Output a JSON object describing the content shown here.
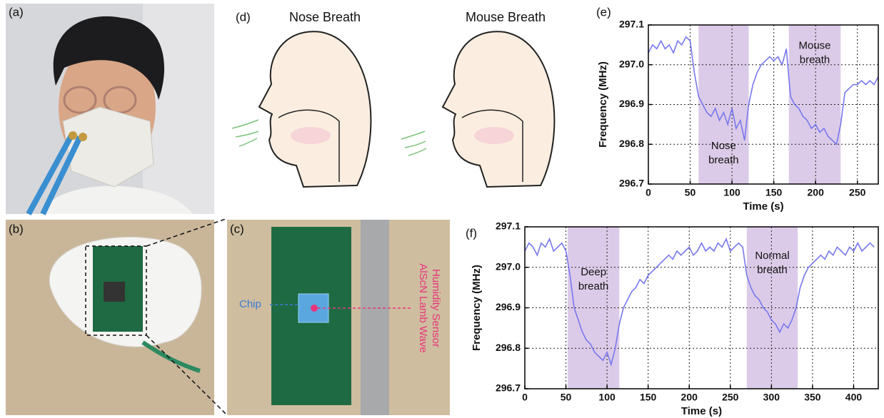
{
  "panels": {
    "a": "(a)",
    "b": "(b)",
    "c": "(c)",
    "d": "(d)",
    "e": "(e)",
    "f": "(f)"
  },
  "illustration": {
    "left_title": "Nose Breath",
    "right_title": "Mouse Breath"
  },
  "photo_c": {
    "chip_label": "Chip",
    "sensor_label": [
      "AlScN Lamb Wave",
      "Humidity Sensor"
    ]
  },
  "chart_data": [
    {
      "type": "line",
      "x_label": "Time (s)",
      "y_label": "Frequency (MHz)",
      "color": "#7777ee",
      "grid": true,
      "xlim": [
        0,
        275
      ],
      "xticks": [
        0,
        50,
        100,
        150,
        200,
        250
      ],
      "ylim": [
        296.7,
        297.1
      ],
      "yticks": [
        296.7,
        296.8,
        296.9,
        {
          "value": 297,
          "label": "297.0"
        },
        297.1
      ],
      "shaded": [
        {
          "x": [
            60,
            120
          ],
          "label": [
            "Nose",
            "breath"
          ]
        },
        {
          "x": [
            168,
            230
          ],
          "label": [
            "Mouse",
            "breath"
          ]
        }
      ],
      "shade_color": "#dccbe8",
      "x": [
        0,
        5,
        10,
        15,
        20,
        25,
        30,
        35,
        40,
        45,
        50,
        55,
        60,
        65,
        70,
        75,
        80,
        85,
        90,
        95,
        100,
        105,
        110,
        115,
        120,
        125,
        130,
        135,
        140,
        145,
        150,
        155,
        160,
        165,
        170,
        175,
        180,
        185,
        190,
        195,
        200,
        205,
        210,
        215,
        220,
        225,
        230,
        235,
        240,
        245,
        250,
        255,
        260,
        265,
        270,
        275
      ],
      "values": [
        297.03,
        297.05,
        297.04,
        297.06,
        297.04,
        297.05,
        297.03,
        297.06,
        297.05,
        297.07,
        297.06,
        296.98,
        296.92,
        296.9,
        296.88,
        296.87,
        296.89,
        296.86,
        296.88,
        296.85,
        296.89,
        296.84,
        296.86,
        296.81,
        296.9,
        296.95,
        296.98,
        297.0,
        297.01,
        297.02,
        297.01,
        297.02,
        297.0,
        297.04,
        296.92,
        296.9,
        296.89,
        296.87,
        296.86,
        296.84,
        296.85,
        296.83,
        296.84,
        296.82,
        296.81,
        296.8,
        296.85,
        296.93,
        296.94,
        296.95,
        296.95,
        296.96,
        296.95,
        296.96,
        296.95,
        296.97
      ]
    },
    {
      "type": "line",
      "x_label": "Time (s)",
      "y_label": "Frequency (MHz)",
      "color": "#7777ee",
      "grid": true,
      "xlim": [
        0,
        430
      ],
      "xticks": [
        0,
        50,
        100,
        150,
        200,
        250,
        300,
        350,
        400
      ],
      "ylim": [
        296.7,
        297.1
      ],
      "yticks": [
        296.7,
        296.8,
        296.9,
        {
          "value": 297,
          "label": "297.0"
        },
        297.1
      ],
      "shaded": [
        {
          "x": [
            52,
            115
          ],
          "label": [
            "Deep",
            "breath"
          ]
        },
        {
          "x": [
            270,
            332
          ],
          "label": [
            "Normal",
            "breath"
          ]
        }
      ],
      "shade_color": "#dccbe8",
      "x": [
        0,
        5,
        10,
        15,
        20,
        25,
        30,
        35,
        40,
        45,
        50,
        55,
        60,
        65,
        70,
        75,
        80,
        85,
        90,
        95,
        100,
        105,
        110,
        115,
        120,
        125,
        130,
        135,
        140,
        145,
        150,
        155,
        160,
        165,
        170,
        175,
        180,
        185,
        190,
        195,
        200,
        205,
        210,
        215,
        220,
        225,
        230,
        235,
        240,
        245,
        250,
        255,
        260,
        265,
        270,
        275,
        280,
        285,
        290,
        295,
        300,
        305,
        310,
        315,
        320,
        325,
        330,
        335,
        340,
        345,
        350,
        355,
        360,
        365,
        370,
        375,
        380,
        385,
        390,
        395,
        400,
        405,
        410,
        415,
        420,
        425
      ],
      "values": [
        297.04,
        297.06,
        297.05,
        297.03,
        297.06,
        297.05,
        297.07,
        297.04,
        297.05,
        297.06,
        297.04,
        296.98,
        296.9,
        296.87,
        296.84,
        296.82,
        296.81,
        296.79,
        296.78,
        296.77,
        296.79,
        296.76,
        296.8,
        296.86,
        296.9,
        296.92,
        296.94,
        296.95,
        296.97,
        296.96,
        296.98,
        296.99,
        297.0,
        297.01,
        297.02,
        297.03,
        297.02,
        297.04,
        297.03,
        297.04,
        297.05,
        297.03,
        297.04,
        297.06,
        297.04,
        297.05,
        297.04,
        297.06,
        297.05,
        297.07,
        297.04,
        297.05,
        297.06,
        297.05,
        296.98,
        296.95,
        296.93,
        296.92,
        296.9,
        296.89,
        296.87,
        296.86,
        296.84,
        296.86,
        296.85,
        296.87,
        296.9,
        296.95,
        296.98,
        297.0,
        297.01,
        297.02,
        297.03,
        297.02,
        297.04,
        297.03,
        297.05,
        297.04,
        297.03,
        297.05,
        297.04,
        297.06,
        297.04,
        297.05,
        297.06,
        297.05
      ]
    }
  ]
}
